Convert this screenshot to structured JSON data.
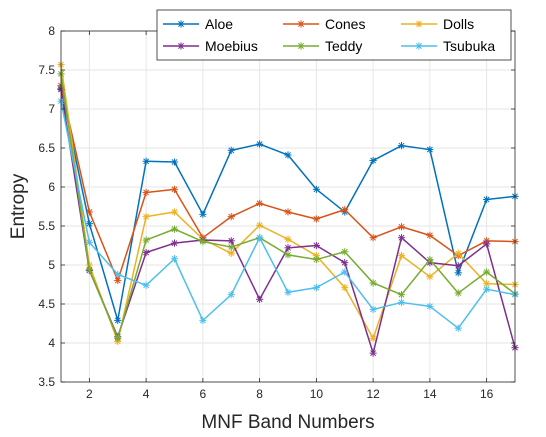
{
  "chart_data": {
    "type": "line",
    "xlabel": "MNF Band Numbers",
    "ylabel": "Entropy",
    "xlim": [
      1,
      17
    ],
    "ylim": [
      3.5,
      8
    ],
    "xticks": [
      2,
      4,
      6,
      8,
      10,
      12,
      14,
      16
    ],
    "yticks": [
      3.5,
      4,
      4.5,
      5,
      5.5,
      6,
      6.5,
      7,
      7.5,
      8
    ],
    "grid": true,
    "legend_position": "top-right",
    "legend_columns": 3,
    "x": [
      1,
      2,
      3,
      4,
      5,
      6,
      7,
      8,
      9,
      10,
      11,
      12,
      13,
      14,
      15,
      16,
      17
    ],
    "series": [
      {
        "name": "Aloe",
        "color": "#0072BD",
        "values": [
          7.26,
          5.53,
          4.29,
          6.33,
          6.32,
          5.65,
          6.47,
          6.55,
          6.41,
          5.97,
          5.68,
          6.34,
          6.53,
          6.48,
          4.9,
          5.84,
          5.88
        ]
      },
      {
        "name": "Cones",
        "color": "#D95319",
        "values": [
          7.3,
          5.68,
          4.8,
          5.93,
          5.97,
          5.35,
          5.62,
          5.79,
          5.68,
          5.59,
          5.71,
          5.35,
          5.49,
          5.38,
          5.12,
          5.31,
          5.3
        ]
      },
      {
        "name": "Dolls",
        "color": "#EDB120",
        "values": [
          7.57,
          5.0,
          4.02,
          5.62,
          5.68,
          5.33,
          5.15,
          5.51,
          5.33,
          5.12,
          4.71,
          4.06,
          5.12,
          4.85,
          5.15,
          4.76,
          4.75
        ]
      },
      {
        "name": "Moebius",
        "color": "#7E2F8E",
        "values": [
          7.25,
          4.93,
          4.08,
          5.16,
          5.28,
          5.32,
          5.31,
          4.56,
          5.22,
          5.25,
          5.03,
          3.87,
          5.35,
          5.03,
          4.99,
          5.27,
          3.94
        ]
      },
      {
        "name": "Teddy",
        "color": "#77AC30",
        "values": [
          7.45,
          4.94,
          4.06,
          5.32,
          5.46,
          5.3,
          5.23,
          5.35,
          5.13,
          5.07,
          5.17,
          4.77,
          4.62,
          5.07,
          4.64,
          4.91,
          4.63
        ]
      },
      {
        "name": "Tsubuka",
        "color": "#4DBEEE",
        "values": [
          7.1,
          5.29,
          4.88,
          4.74,
          5.08,
          4.29,
          4.62,
          5.35,
          4.65,
          4.71,
          4.91,
          4.43,
          4.52,
          4.47,
          4.19,
          4.69,
          4.62
        ]
      }
    ]
  }
}
